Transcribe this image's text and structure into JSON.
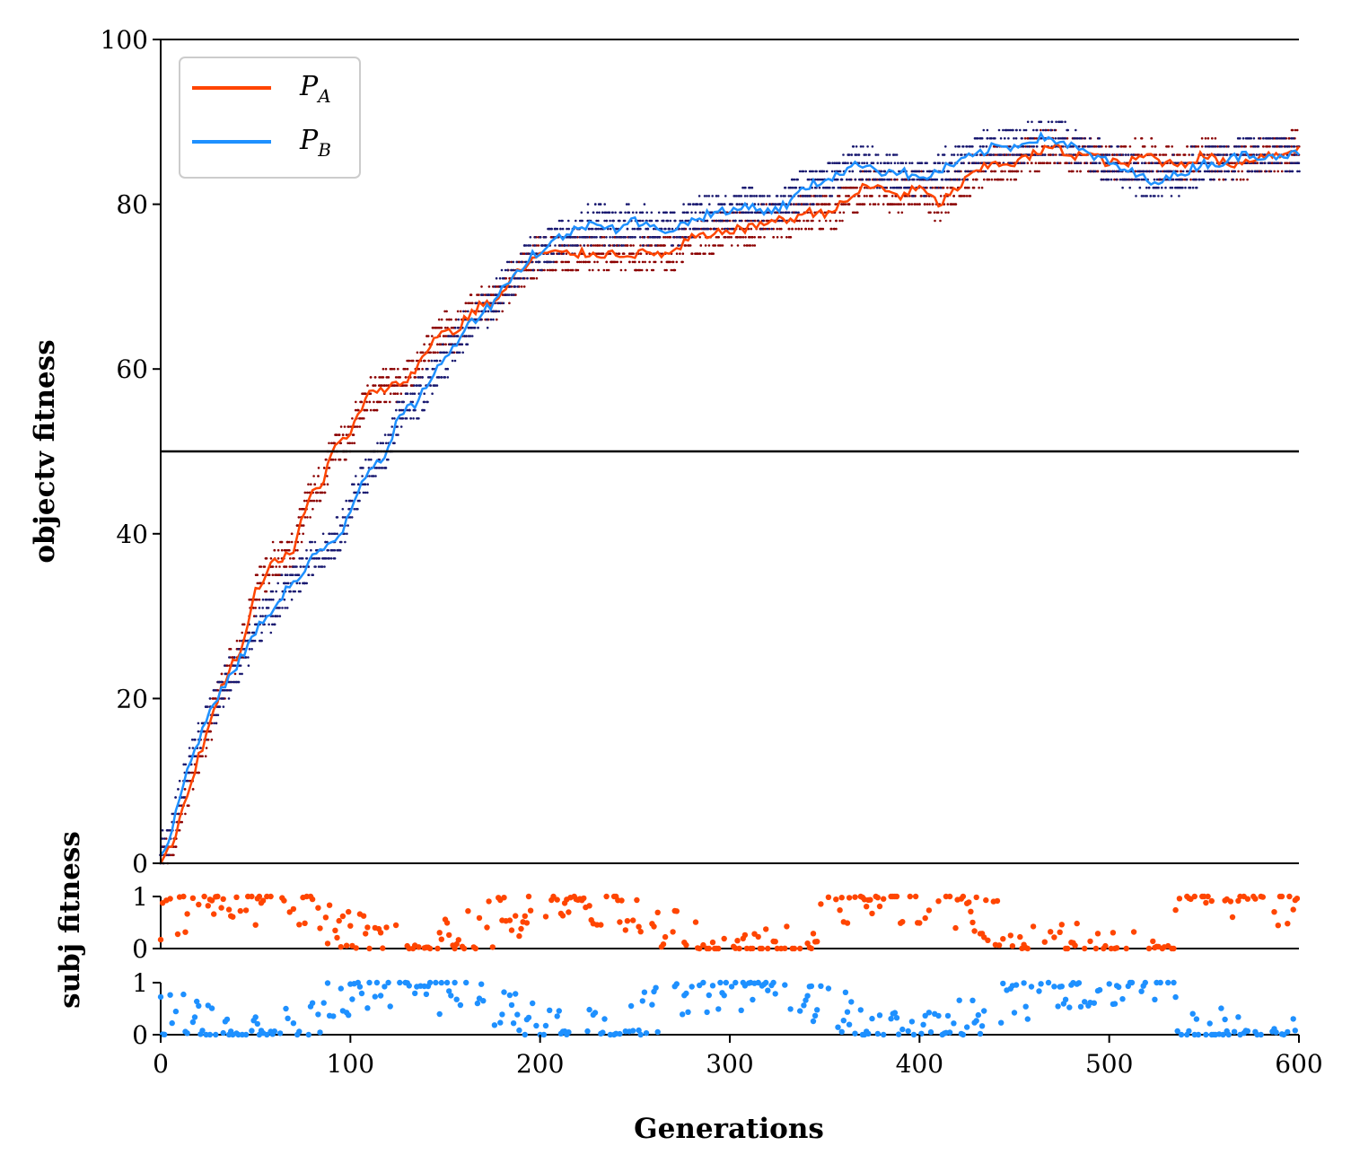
{
  "chart_data": [
    {
      "type": "line",
      "title": "",
      "ylabel": "objectv fitness",
      "xlabel": "",
      "xlim": [
        0,
        600
      ],
      "ylim": [
        0,
        100
      ],
      "yticks": [
        "0",
        "20",
        "40",
        "60",
        "80",
        "100"
      ],
      "reference_line_y": 50,
      "legend_position": "upper-left",
      "series": [
        {
          "name": "P_A",
          "label_main": "P",
          "label_sub": "A",
          "color": "#ff4500",
          "x": [
            0,
            5,
            10,
            15,
            20,
            25,
            30,
            35,
            40,
            45,
            50,
            55,
            60,
            65,
            70,
            75,
            80,
            85,
            90,
            95,
            100,
            105,
            110,
            115,
            120,
            125,
            130,
            135,
            140,
            145,
            150,
            155,
            160,
            165,
            170,
            175,
            180,
            185,
            190,
            195,
            200,
            210,
            220,
            230,
            240,
            250,
            260,
            270,
            280,
            290,
            300,
            310,
            320,
            330,
            340,
            350,
            360,
            370,
            380,
            390,
            400,
            410,
            420,
            430,
            440,
            450,
            460,
            470,
            480,
            490,
            500,
            510,
            520,
            530,
            540,
            550,
            560,
            570,
            580,
            590,
            600
          ],
          "y": [
            0,
            2,
            5,
            9,
            13,
            16,
            20,
            23,
            25,
            28,
            33,
            35,
            37,
            37,
            38,
            42,
            45,
            46,
            50,
            51,
            52,
            55,
            57,
            57,
            58,
            58,
            59,
            60,
            62,
            64,
            65,
            64,
            66,
            67,
            68,
            68,
            69,
            71,
            72,
            73,
            74,
            74,
            74,
            74,
            74,
            74,
            74,
            74,
            76,
            76,
            77,
            77,
            78,
            78,
            79,
            79,
            80,
            82,
            82,
            81,
            82,
            80,
            82,
            84,
            85,
            85,
            86,
            87,
            86,
            86,
            85,
            85,
            86,
            85,
            85,
            86,
            85,
            85,
            86,
            86,
            87
          ]
        },
        {
          "name": "P_B",
          "label_main": "P",
          "label_sub": "B",
          "color": "#1e90ff",
          "x": [
            0,
            5,
            10,
            15,
            20,
            25,
            30,
            35,
            40,
            45,
            50,
            55,
            60,
            65,
            70,
            75,
            80,
            85,
            90,
            95,
            100,
            105,
            110,
            115,
            120,
            125,
            130,
            135,
            140,
            145,
            150,
            155,
            160,
            165,
            170,
            175,
            180,
            185,
            190,
            195,
            200,
            210,
            220,
            230,
            240,
            250,
            260,
            270,
            280,
            290,
            300,
            310,
            320,
            330,
            340,
            350,
            360,
            370,
            380,
            390,
            400,
            410,
            420,
            430,
            440,
            450,
            460,
            470,
            480,
            490,
            500,
            510,
            520,
            530,
            540,
            550,
            560,
            570,
            580,
            590,
            600
          ],
          "y": [
            1,
            3,
            8,
            12,
            15,
            18,
            20,
            22,
            24,
            26,
            28,
            30,
            31,
            33,
            34,
            35,
            37,
            38,
            39,
            40,
            43,
            46,
            48,
            49,
            50,
            54,
            55,
            56,
            58,
            60,
            61,
            63,
            65,
            66,
            67,
            68,
            70,
            71,
            72,
            74,
            74,
            76,
            77,
            78,
            77,
            78,
            77,
            77,
            78,
            79,
            79,
            80,
            79,
            80,
            82,
            83,
            84,
            85,
            84,
            84,
            83,
            84,
            85,
            86,
            87,
            87,
            88,
            88,
            87,
            86,
            85,
            84,
            83,
            83,
            84,
            85,
            85,
            86,
            86,
            86,
            86
          ]
        }
      ]
    },
    {
      "type": "scatter",
      "ylabel": "subj fitness",
      "xlim": [
        0,
        600
      ],
      "ylim": [
        0,
        1
      ],
      "yticks": [
        "0",
        "1"
      ],
      "series": [
        {
          "name": "",
          "color": "#ff4500",
          "points_per_panel": 600
        }
      ]
    },
    {
      "type": "scatter",
      "xlabel": "Generations",
      "xlim": [
        0,
        600
      ],
      "ylim": [
        0,
        1
      ],
      "xticks": [
        "0",
        "100",
        "200",
        "300",
        "400",
        "500",
        "600"
      ],
      "yticks": [
        "0",
        "1"
      ],
      "series": [
        {
          "name": "",
          "color": "#1e90ff",
          "points_per_panel": 600
        }
      ]
    }
  ],
  "colors": {
    "pa": "#ff4500",
    "pb": "#1e90ff",
    "pa_dots": "#8b0000",
    "pb_dots": "#191970"
  },
  "labels": {
    "y_top": "objectv fitness",
    "y_bottom": "subj fitness",
    "x": "Generations"
  }
}
